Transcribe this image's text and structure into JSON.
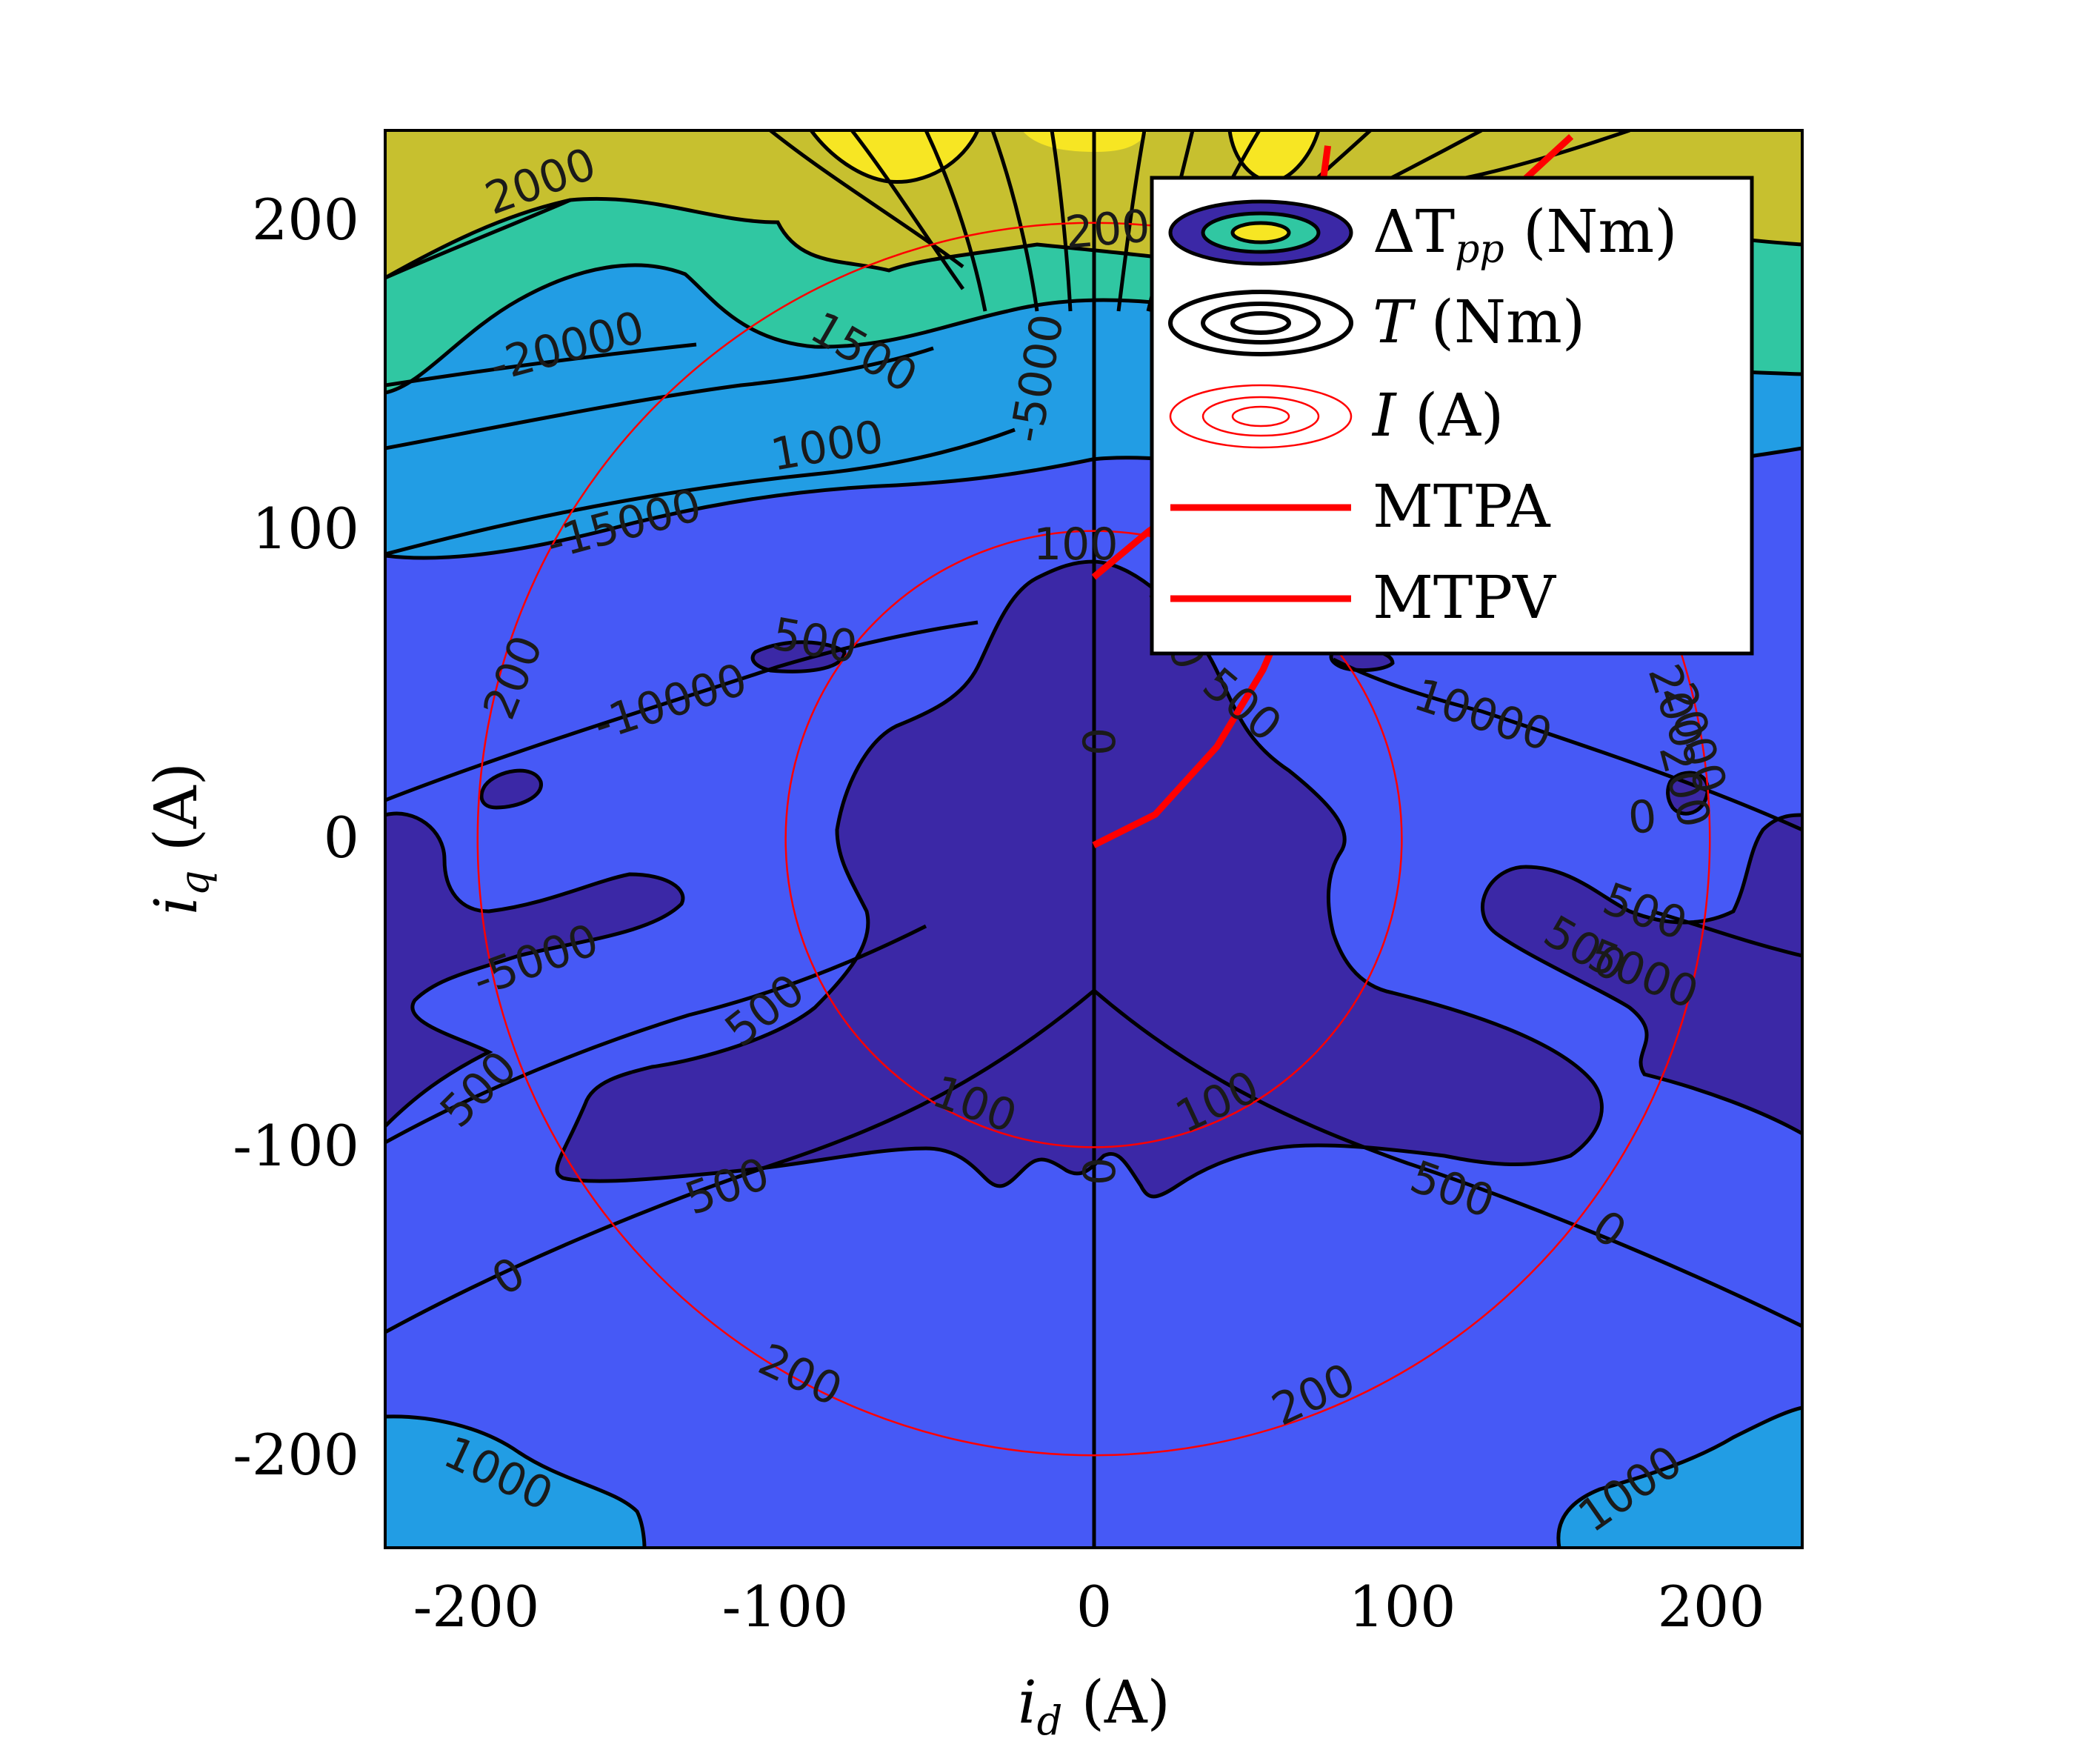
{
  "chart_data": {
    "type": "contour",
    "xlabel": "i_d (A)",
    "ylabel": "i_q (A)",
    "xlim": [
      -230,
      230
    ],
    "ylim": [
      -230,
      230
    ],
    "xticks": [
      -200,
      -100,
      0,
      100,
      200
    ],
    "yticks": [
      -200,
      -100,
      0,
      100,
      200
    ],
    "xtick_labels": [
      "-200",
      "-100",
      "0",
      "100",
      "200"
    ],
    "ytick_labels": [
      "-200",
      "-100",
      "0",
      "100",
      "200"
    ],
    "grid": false,
    "legend_position": "top-right",
    "legend": [
      {
        "label_main": "ΔT",
        "label_sub": "pp",
        "label_tail": " (Nm)",
        "kind": "filled-contour"
      },
      {
        "label_main": "T",
        "label_sub": "",
        "label_tail": " (Nm)",
        "kind": "black-contour"
      },
      {
        "label_main": "I",
        "label_sub": "",
        "label_tail": " (A)",
        "kind": "red-contour"
      },
      {
        "label_main": "MTPA",
        "label_sub": "",
        "label_tail": "",
        "kind": "thick-red-line"
      },
      {
        "label_main": "MTPV",
        "label_sub": "",
        "label_tail": "",
        "kind": "thick-red-line"
      }
    ],
    "colors": {
      "level_0": "#3b28a6",
      "level_1": "#4659f6",
      "level_2": "#229de4",
      "level_3": "#30c7a2",
      "level_4": "#c7c02f",
      "level_5": "#f7e623",
      "contour": "#000000",
      "current": "#ff0000"
    },
    "current_circles": [
      100,
      200
    ],
    "torque_ripple_contour_labels": [
      "500",
      "500",
      "500",
      "500",
      "500",
      "500",
      "500",
      "500",
      "1000",
      "1000",
      "1000",
      "1500",
      "2000",
      "2000",
      "2000"
    ],
    "torque_contour_labels": [
      "0",
      "0",
      "0",
      "0",
      "0",
      "-5000",
      "-5000",
      "-10000",
      "10000",
      "-15000",
      "-20000",
      "5000"
    ],
    "current_contour_labels": [
      "100",
      "100",
      "100",
      "200",
      "200",
      "200",
      "200",
      "200",
      "200"
    ],
    "mtpa": [
      [
        0,
        85
      ],
      [
        18,
        100
      ],
      [
        35,
        112
      ],
      [
        52,
        130
      ],
      [
        64,
        160
      ],
      [
        72,
        195
      ],
      [
        76,
        225
      ]
    ],
    "mtpv": [
      [
        0,
        -2
      ],
      [
        20,
        8
      ],
      [
        40,
        30
      ],
      [
        55,
        55
      ],
      [
        68,
        85
      ],
      [
        78,
        115
      ],
      [
        92,
        150
      ],
      [
        110,
        180
      ],
      [
        130,
        205
      ],
      [
        155,
        228
      ]
    ]
  }
}
